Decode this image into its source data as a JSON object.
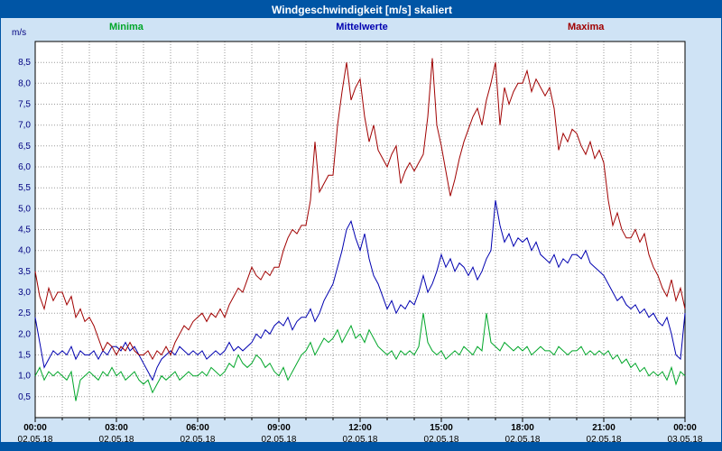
{
  "chart_data": {
    "type": "line",
    "title": "Windgeschwindigkeit [m/s] skaliert",
    "y_unit": "m/s",
    "ylim": [
      0,
      9
    ],
    "ytick_step": 0.5,
    "ytick_labels": [
      "0,5",
      "1,0",
      "1,5",
      "2,0",
      "2,5",
      "3,0",
      "3,5",
      "4,0",
      "4,5",
      "5,0",
      "5,5",
      "6,0",
      "6,5",
      "7,0",
      "7,5",
      "8,0",
      "8,5"
    ],
    "xtick_times": [
      "00:00",
      "03:00",
      "06:00",
      "09:00",
      "12:00",
      "15:00",
      "18:00",
      "21:00",
      "00:00"
    ],
    "xtick_dates": [
      "02.05.18",
      "02.05.18",
      "02.05.18",
      "02.05.18",
      "02.05.18",
      "02.05.18",
      "02.05.18",
      "02.05.18",
      "03.05.18"
    ],
    "x_minutes_per_point": 10,
    "x_total_hours": 24,
    "grid": true,
    "legend_position": "top",
    "colors": {
      "titlebar": "#0055a5",
      "background": "#cfe3f5",
      "grid": "#9a9a9a",
      "axis_labels": "#000080"
    },
    "series": [
      {
        "name": "Minima",
        "color": "#00a629",
        "values": [
          1.0,
          1.2,
          0.9,
          1.1,
          1.0,
          1.1,
          1.0,
          0.9,
          1.1,
          0.4,
          0.9,
          1.0,
          1.1,
          1.0,
          0.9,
          1.1,
          1.0,
          1.2,
          1.0,
          1.1,
          0.9,
          1.0,
          1.1,
          0.9,
          0.8,
          0.9,
          0.6,
          0.8,
          1.0,
          0.9,
          1.0,
          1.1,
          0.9,
          1.0,
          1.1,
          1.0,
          1.0,
          1.1,
          1.0,
          1.2,
          1.1,
          1.0,
          1.1,
          1.3,
          1.2,
          1.5,
          1.3,
          1.2,
          1.3,
          1.5,
          1.4,
          1.2,
          1.3,
          1.1,
          1.0,
          1.2,
          0.9,
          1.1,
          1.3,
          1.5,
          1.6,
          1.8,
          1.5,
          1.7,
          1.9,
          1.8,
          1.9,
          2.1,
          1.8,
          2.0,
          2.2,
          1.9,
          2.0,
          1.8,
          2.1,
          1.9,
          1.7,
          1.6,
          1.5,
          1.6,
          1.4,
          1.6,
          1.5,
          1.6,
          1.5,
          1.7,
          2.5,
          1.8,
          1.6,
          1.5,
          1.6,
          1.4,
          1.5,
          1.6,
          1.5,
          1.7,
          1.6,
          1.5,
          1.7,
          1.6,
          2.5,
          1.8,
          1.7,
          1.6,
          1.8,
          1.7,
          1.6,
          1.7,
          1.6,
          1.7,
          1.5,
          1.6,
          1.7,
          1.6,
          1.6,
          1.5,
          1.7,
          1.6,
          1.5,
          1.6,
          1.6,
          1.7,
          1.5,
          1.6,
          1.5,
          1.6,
          1.5,
          1.6,
          1.4,
          1.5,
          1.3,
          1.4,
          1.2,
          1.3,
          1.1,
          1.2,
          1.0,
          1.1,
          1.0,
          1.1,
          0.9,
          1.2,
          0.8,
          1.1,
          1.0
        ]
      },
      {
        "name": "Mittelwerte",
        "color": "#0000b0",
        "values": [
          2.4,
          1.8,
          1.2,
          1.4,
          1.6,
          1.5,
          1.6,
          1.5,
          1.7,
          1.4,
          1.6,
          1.5,
          1.5,
          1.6,
          1.4,
          1.6,
          1.5,
          1.7,
          1.7,
          1.6,
          1.8,
          1.6,
          1.7,
          1.5,
          1.3,
          1.1,
          0.9,
          1.2,
          1.4,
          1.5,
          1.6,
          1.5,
          1.7,
          1.6,
          1.5,
          1.6,
          1.5,
          1.6,
          1.4,
          1.5,
          1.6,
          1.5,
          1.6,
          1.8,
          1.6,
          1.7,
          1.6,
          1.7,
          1.8,
          2.0,
          1.9,
          2.1,
          2.0,
          2.2,
          2.3,
          2.2,
          2.4,
          2.1,
          2.3,
          2.4,
          2.4,
          2.6,
          2.3,
          2.5,
          2.8,
          3.0,
          3.2,
          3.6,
          4.0,
          4.5,
          4.7,
          4.3,
          4.0,
          4.4,
          3.8,
          3.4,
          3.2,
          2.9,
          2.6,
          2.8,
          2.5,
          2.7,
          2.6,
          2.8,
          2.7,
          3.0,
          3.4,
          3.0,
          3.2,
          3.5,
          3.9,
          3.6,
          3.8,
          3.5,
          3.7,
          3.6,
          3.4,
          3.6,
          3.3,
          3.5,
          3.8,
          4.0,
          5.2,
          4.6,
          4.2,
          4.4,
          4.1,
          4.3,
          4.2,
          4.3,
          4.0,
          4.2,
          3.9,
          3.8,
          3.7,
          3.9,
          3.6,
          3.8,
          3.7,
          3.9,
          3.9,
          3.8,
          4.0,
          3.7,
          3.6,
          3.5,
          3.4,
          3.2,
          3.0,
          2.8,
          2.9,
          2.7,
          2.6,
          2.7,
          2.5,
          2.6,
          2.4,
          2.5,
          2.3,
          2.2,
          2.4,
          2.0,
          1.5,
          1.4,
          2.5
        ]
      },
      {
        "name": "Maxima",
        "color": "#a00000",
        "values": [
          3.5,
          2.9,
          2.6,
          3.1,
          2.8,
          3.0,
          3.0,
          2.7,
          2.9,
          2.4,
          2.6,
          2.3,
          2.4,
          2.2,
          1.9,
          1.6,
          1.8,
          1.7,
          1.5,
          1.7,
          1.6,
          1.8,
          1.6,
          1.5,
          1.5,
          1.6,
          1.4,
          1.6,
          1.5,
          1.7,
          1.5,
          1.8,
          2.0,
          2.2,
          2.1,
          2.3,
          2.4,
          2.5,
          2.3,
          2.5,
          2.4,
          2.6,
          2.4,
          2.7,
          2.9,
          3.1,
          3.0,
          3.3,
          3.6,
          3.4,
          3.3,
          3.5,
          3.4,
          3.6,
          3.6,
          4.0,
          4.3,
          4.5,
          4.4,
          4.6,
          4.6,
          5.2,
          6.6,
          5.4,
          5.6,
          5.8,
          5.8,
          7.0,
          7.8,
          8.5,
          7.6,
          7.9,
          8.1,
          7.2,
          6.6,
          7.0,
          6.4,
          6.2,
          6.0,
          6.3,
          6.5,
          5.6,
          5.9,
          6.1,
          5.9,
          6.1,
          6.3,
          7.2,
          8.6,
          7.0,
          6.5,
          5.9,
          5.3,
          5.7,
          6.2,
          6.6,
          6.9,
          7.2,
          7.4,
          7.0,
          7.6,
          8.0,
          8.5,
          7.0,
          7.9,
          7.5,
          7.8,
          8.0,
          8.0,
          8.3,
          7.8,
          8.1,
          7.9,
          7.7,
          7.9,
          7.4,
          6.4,
          6.8,
          6.6,
          6.9,
          6.8,
          6.5,
          6.3,
          6.6,
          6.2,
          6.4,
          6.1,
          5.2,
          4.6,
          4.9,
          4.5,
          4.3,
          4.3,
          4.5,
          4.2,
          4.4,
          3.9,
          3.6,
          3.4,
          3.1,
          2.9,
          3.3,
          2.8,
          3.1,
          2.6
        ]
      }
    ]
  }
}
